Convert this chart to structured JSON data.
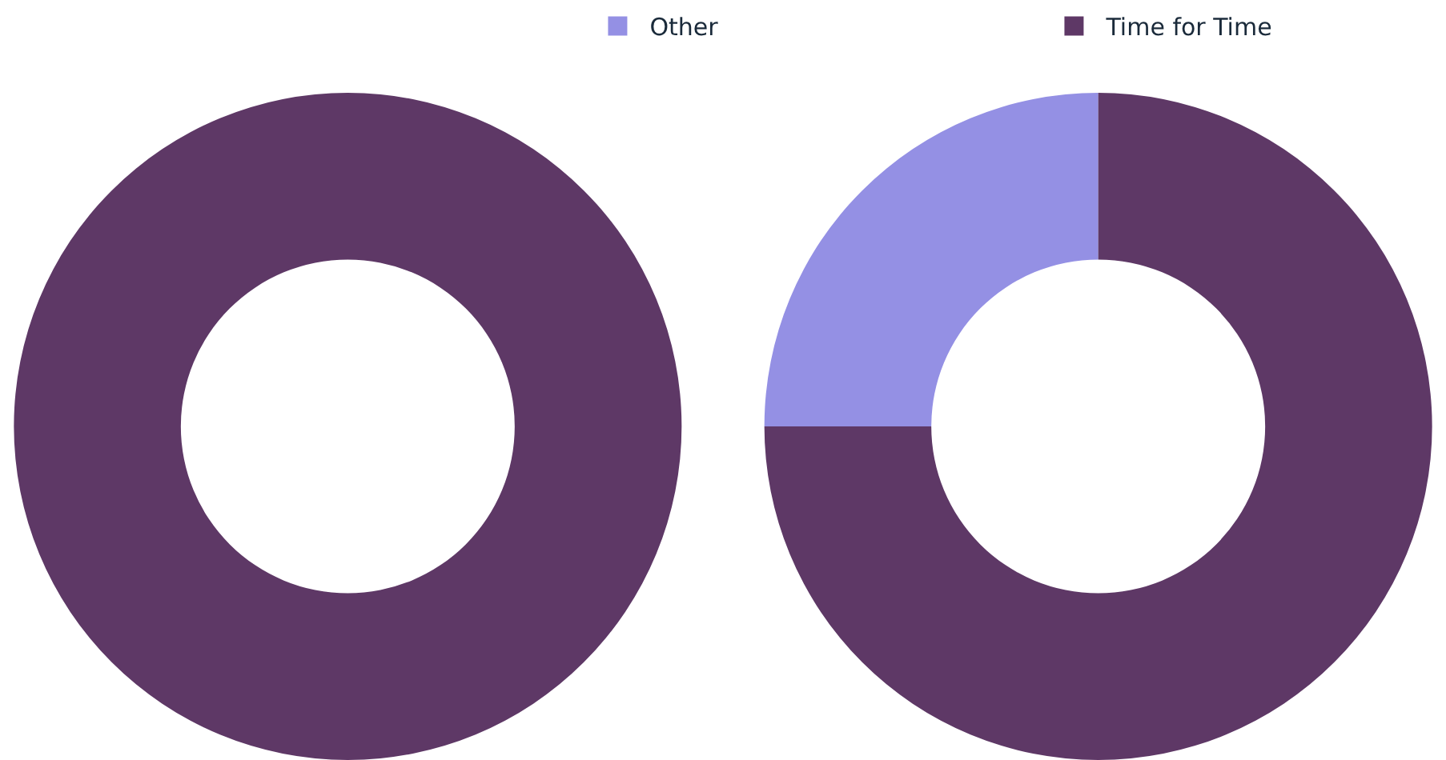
{
  "chart_data": {
    "type": "donut",
    "categories": [
      "Other",
      "Time for Time"
    ],
    "colors": [
      "#9490e4",
      "#5e3866"
    ],
    "legend": "top",
    "series": [
      {
        "values": [
          0,
          100
        ]
      },
      {
        "values": [
          25,
          75
        ]
      }
    ]
  }
}
